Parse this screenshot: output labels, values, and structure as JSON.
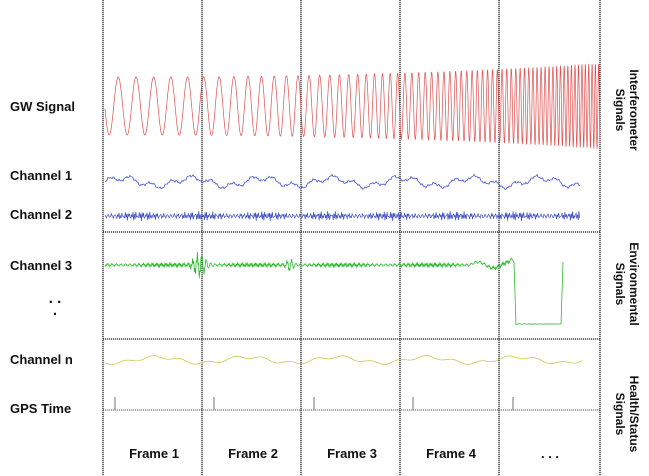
{
  "row_labels": {
    "gw_signal": "GW Signal",
    "channel_1": "Channel 1",
    "channel_2": "Channel 2",
    "channel_3": "Channel 3",
    "ellipsis": ". . .",
    "channel_n": "Channel n",
    "gps_time": "GPS Time"
  },
  "frames": [
    "Frame 1",
    "Frame 2",
    "Frame 3",
    "Frame 4",
    ". . ."
  ],
  "groups": {
    "interferometer": [
      "Interferometer",
      "Signals"
    ],
    "environmental": [
      "Environmental",
      "Signals"
    ],
    "health": [
      "Health/Status",
      "Signals"
    ]
  },
  "colors": {
    "gw_signal": "#e05050",
    "channel_1": "#4a5ad8",
    "channel_2": "#4050c8",
    "channel_3": "#30b830",
    "channel_n": "#c8c850",
    "gps_tick": "#888888",
    "grid": "#222222"
  }
}
